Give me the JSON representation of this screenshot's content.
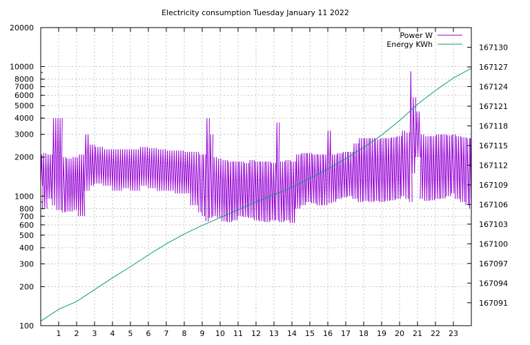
{
  "chart_data": {
    "type": "line",
    "title": "Electricity consumption Tuesday January 11 2022",
    "xlabel": "",
    "ylabel": "",
    "y2label": "",
    "grid": true,
    "legend_position": "top-right",
    "x_range": [
      0,
      24
    ],
    "x_ticks": [
      1,
      2,
      3,
      4,
      5,
      6,
      7,
      8,
      9,
      10,
      11,
      12,
      13,
      14,
      15,
      16,
      17,
      18,
      19,
      20,
      21,
      22,
      23
    ],
    "y_scale": "log",
    "y_range": [
      100,
      20000
    ],
    "y_ticks": [
      100,
      200,
      300,
      400,
      500,
      600,
      700,
      800,
      1000,
      2000,
      3000,
      4000,
      5000,
      6000,
      7000,
      8000,
      10000,
      20000
    ],
    "y2_range": [
      167087.5,
      167133
    ],
    "y2_ticks": [
      167091,
      167094,
      167097,
      167100,
      167103,
      167106,
      167109,
      167112,
      167115,
      167118,
      167121,
      167124,
      167127,
      167130
    ],
    "series": [
      {
        "name": "Power W",
        "axis": "left",
        "color": "#9400d3",
        "segments": [
          [
            0.0,
            1200,
            2100
          ],
          [
            0.1,
            800,
            2150
          ],
          [
            0.35,
            950,
            2100
          ],
          [
            0.65,
            850,
            4000
          ],
          [
            0.9,
            780,
            4000
          ],
          [
            1.2,
            750,
            2000
          ],
          [
            1.4,
            760,
            1950
          ],
          [
            1.75,
            780,
            2000
          ],
          [
            2.1,
            700,
            2100
          ],
          [
            2.45,
            1100,
            3000
          ],
          [
            2.7,
            1200,
            2500
          ],
          [
            3.0,
            1250,
            2400
          ],
          [
            3.5,
            1200,
            2300
          ],
          [
            4.0,
            1100,
            2300
          ],
          [
            4.5,
            1150,
            2300
          ],
          [
            5.0,
            1100,
            2300
          ],
          [
            5.5,
            1200,
            2400
          ],
          [
            6.0,
            1150,
            2350
          ],
          [
            6.5,
            1100,
            2300
          ],
          [
            7.0,
            1100,
            2250
          ],
          [
            7.5,
            1050,
            2250
          ],
          [
            8.0,
            1050,
            2200
          ],
          [
            8.35,
            850,
            2200
          ],
          [
            8.8,
            750,
            2100
          ],
          [
            9.0,
            700,
            2100
          ],
          [
            9.2,
            640,
            4000
          ],
          [
            9.4,
            680,
            3000
          ],
          [
            9.6,
            700,
            2000
          ],
          [
            9.85,
            680,
            1950
          ],
          [
            10.1,
            640,
            1900
          ],
          [
            10.4,
            630,
            1850
          ],
          [
            10.7,
            650,
            1850
          ],
          [
            11.0,
            700,
            1850
          ],
          [
            11.3,
            690,
            1800
          ],
          [
            11.6,
            680,
            1900
          ],
          [
            11.9,
            650,
            1850
          ],
          [
            12.2,
            640,
            1850
          ],
          [
            12.5,
            630,
            1850
          ],
          [
            12.8,
            650,
            1800
          ],
          [
            13.1,
            650,
            3700
          ],
          [
            13.3,
            630,
            1850
          ],
          [
            13.6,
            650,
            1900
          ],
          [
            13.9,
            620,
            1850
          ],
          [
            14.2,
            800,
            2100
          ],
          [
            14.5,
            850,
            2150
          ],
          [
            14.8,
            900,
            2150
          ],
          [
            15.1,
            880,
            2100
          ],
          [
            15.4,
            850,
            2100
          ],
          [
            15.7,
            850,
            2100
          ],
          [
            15.95,
            880,
            3200
          ],
          [
            16.2,
            900,
            2100
          ],
          [
            16.5,
            950,
            2150
          ],
          [
            16.8,
            980,
            2200
          ],
          [
            17.1,
            1000,
            2200
          ],
          [
            17.4,
            950,
            2550
          ],
          [
            17.7,
            900,
            2800
          ],
          [
            18.0,
            920,
            2800
          ],
          [
            18.3,
            900,
            2800
          ],
          [
            18.6,
            920,
            2750
          ],
          [
            18.9,
            900,
            2800
          ],
          [
            19.2,
            920,
            2800
          ],
          [
            19.5,
            930,
            2850
          ],
          [
            19.8,
            950,
            2900
          ],
          [
            20.1,
            1000,
            3200
          ],
          [
            20.35,
            950,
            3100
          ],
          [
            20.55,
            900,
            9200
          ],
          [
            20.7,
            1500,
            5800
          ],
          [
            20.9,
            2000,
            4500
          ],
          [
            21.15,
            950,
            3000
          ],
          [
            21.4,
            920,
            2900
          ],
          [
            21.7,
            930,
            2900
          ],
          [
            22.0,
            950,
            3000
          ],
          [
            22.3,
            960,
            3000
          ],
          [
            22.6,
            1000,
            2950
          ],
          [
            22.9,
            1050,
            3000
          ],
          [
            23.1,
            950,
            2900
          ],
          [
            23.4,
            900,
            2850
          ],
          [
            23.7,
            850,
            2800
          ],
          [
            23.9,
            800,
            2800
          ]
        ]
      },
      {
        "name": "Energy KWh",
        "axis": "right",
        "color": "#009e73",
        "points": [
          [
            0,
            167088.2
          ],
          [
            1,
            167090
          ],
          [
            2,
            167091.2
          ],
          [
            3,
            167093
          ],
          [
            4,
            167094.8
          ],
          [
            5,
            167096.5
          ],
          [
            6,
            167098.3
          ],
          [
            7,
            167100
          ],
          [
            8,
            167101.5
          ],
          [
            9,
            167102.8
          ],
          [
            10,
            167104
          ],
          [
            11,
            167105.2
          ],
          [
            12,
            167106.4
          ],
          [
            13,
            167107.5
          ],
          [
            14,
            167108.6
          ],
          [
            15,
            167110
          ],
          [
            16,
            167111.4
          ],
          [
            17,
            167113
          ],
          [
            18,
            167114.7
          ],
          [
            19,
            167116.6
          ],
          [
            20,
            167118.8
          ],
          [
            21,
            167121.3
          ],
          [
            22,
            167123.4
          ],
          [
            23,
            167125.3
          ],
          [
            24,
            167126.8
          ]
        ]
      }
    ]
  }
}
